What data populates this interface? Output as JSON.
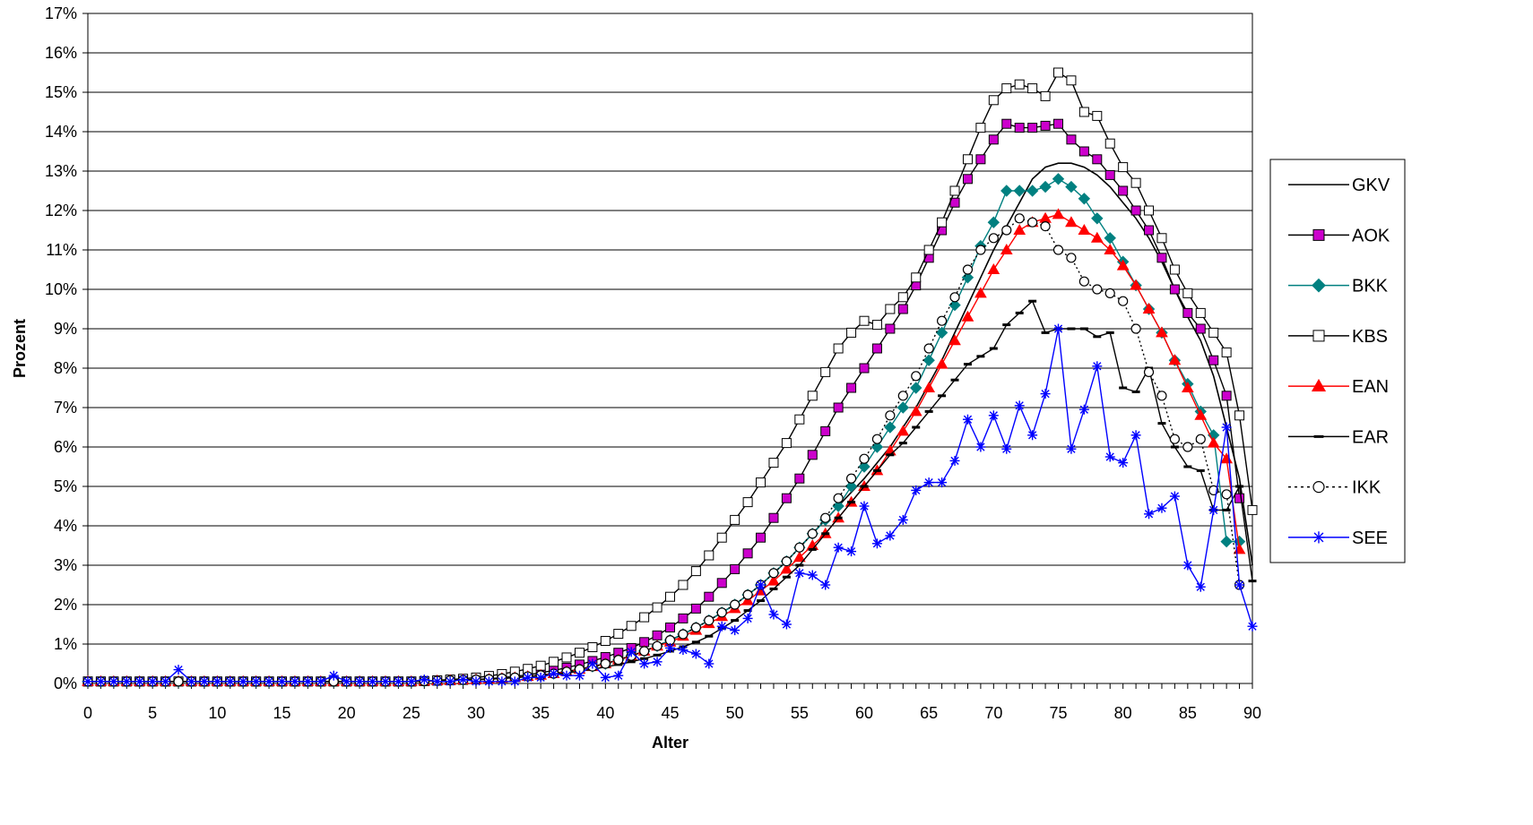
{
  "chart_data": {
    "type": "line",
    "xlabel": "Alter",
    "ylabel": "Prozent",
    "xlim": [
      0,
      90
    ],
    "ylim": [
      0,
      17
    ],
    "x_ticks": [
      0,
      5,
      10,
      15,
      20,
      25,
      30,
      35,
      40,
      45,
      50,
      55,
      60,
      65,
      70,
      75,
      80,
      85,
      90
    ],
    "y_ticks": [
      "0%",
      "1%",
      "2%",
      "3%",
      "4%",
      "5%",
      "6%",
      "7%",
      "8%",
      "9%",
      "10%",
      "11%",
      "12%",
      "13%",
      "14%",
      "15%",
      "16%",
      "17%"
    ],
    "grid": "horizontal",
    "legend_position": "right",
    "series": [
      {
        "name": "GKV",
        "color": "#000000",
        "marker": "none",
        "dash": "solid",
        "values": [
          0.05,
          0.05,
          0.05,
          0.05,
          0.05,
          0.05,
          0.05,
          0.05,
          0.05,
          0.05,
          0.05,
          0.05,
          0.05,
          0.05,
          0.05,
          0.05,
          0.05,
          0.05,
          0.05,
          0.05,
          0.05,
          0.05,
          0.05,
          0.05,
          0.05,
          0.05,
          0.06,
          0.07,
          0.08,
          0.09,
          0.1,
          0.11,
          0.13,
          0.15,
          0.18,
          0.21,
          0.25,
          0.3,
          0.36,
          0.43,
          0.5,
          0.6,
          0.7,
          0.82,
          0.95,
          1.1,
          1.25,
          1.42,
          1.6,
          1.8,
          2.0,
          2.25,
          2.5,
          2.8,
          3.1,
          3.45,
          3.8,
          4.15,
          4.5,
          4.85,
          5.2,
          5.6,
          6.0,
          6.5,
          7.0,
          7.6,
          8.2,
          8.9,
          9.6,
          10.3,
          11.0,
          11.6,
          12.2,
          12.8,
          13.1,
          13.2,
          13.2,
          13.1,
          12.9,
          12.6,
          12.2,
          11.8,
          11.3,
          10.7,
          10.0,
          9.3,
          8.7,
          7.8,
          6.5,
          5.2,
          3.0
        ]
      },
      {
        "name": "AOK",
        "color": "#000000",
        "fill": "#cc00cc",
        "marker": "square",
        "dash": "solid",
        "values": [
          0.05,
          0.05,
          0.05,
          0.05,
          0.05,
          0.05,
          0.05,
          0.05,
          0.05,
          0.05,
          0.05,
          0.05,
          0.05,
          0.05,
          0.05,
          0.05,
          0.05,
          0.05,
          0.05,
          0.05,
          0.05,
          0.05,
          0.05,
          0.05,
          0.05,
          0.05,
          0.06,
          0.07,
          0.08,
          0.09,
          0.1,
          0.12,
          0.15,
          0.18,
          0.22,
          0.27,
          0.33,
          0.4,
          0.48,
          0.57,
          0.67,
          0.78,
          0.9,
          1.05,
          1.22,
          1.42,
          1.65,
          1.9,
          2.2,
          2.55,
          2.9,
          3.3,
          3.7,
          4.2,
          4.7,
          5.2,
          5.8,
          6.4,
          7.0,
          7.5,
          8.0,
          8.5,
          9.0,
          9.5,
          10.1,
          10.8,
          11.5,
          12.2,
          12.8,
          13.3,
          13.8,
          14.2,
          14.1,
          14.1,
          14.15,
          14.2,
          13.8,
          13.5,
          13.3,
          12.9,
          12.5,
          12.0,
          11.5,
          10.8,
          10.0,
          9.4,
          9.0,
          8.2,
          7.3,
          4.7
        ]
      },
      {
        "name": "BKK",
        "color": "#008080",
        "fill": "#008080",
        "marker": "diamond",
        "dash": "solid",
        "values": [
          0.05,
          0.05,
          0.05,
          0.05,
          0.05,
          0.05,
          0.05,
          0.05,
          0.05,
          0.05,
          0.05,
          0.05,
          0.05,
          0.05,
          0.05,
          0.05,
          0.05,
          0.05,
          0.05,
          0.05,
          0.05,
          0.05,
          0.05,
          0.05,
          0.05,
          0.05,
          0.06,
          0.07,
          0.08,
          0.09,
          0.1,
          0.11,
          0.13,
          0.15,
          0.18,
          0.21,
          0.25,
          0.3,
          0.36,
          0.43,
          0.5,
          0.6,
          0.7,
          0.82,
          0.95,
          1.1,
          1.25,
          1.42,
          1.6,
          1.8,
          2.0,
          2.25,
          2.5,
          2.8,
          3.1,
          3.45,
          3.8,
          4.15,
          4.5,
          5.0,
          5.5,
          6.0,
          6.5,
          7.0,
          7.5,
          8.2,
          8.9,
          9.6,
          10.3,
          11.1,
          11.7,
          12.5,
          12.5,
          12.5,
          12.6,
          12.8,
          12.6,
          12.3,
          11.8,
          11.3,
          10.7,
          10.1,
          9.5,
          8.9,
          8.2,
          7.6,
          6.9,
          6.3,
          3.6,
          3.6
        ]
      },
      {
        "name": "KBS",
        "color": "#000000",
        "fill": "#ffffff",
        "marker": "square",
        "dash": "solid",
        "values": [
          0.05,
          0.05,
          0.05,
          0.05,
          0.05,
          0.05,
          0.05,
          0.05,
          0.05,
          0.05,
          0.05,
          0.05,
          0.05,
          0.05,
          0.05,
          0.05,
          0.05,
          0.05,
          0.05,
          0.05,
          0.05,
          0.05,
          0.05,
          0.05,
          0.05,
          0.05,
          0.06,
          0.08,
          0.1,
          0.12,
          0.15,
          0.19,
          0.24,
          0.3,
          0.37,
          0.45,
          0.55,
          0.66,
          0.78,
          0.92,
          1.08,
          1.26,
          1.46,
          1.68,
          1.93,
          2.2,
          2.5,
          2.85,
          3.25,
          3.7,
          4.15,
          4.6,
          5.1,
          5.6,
          6.1,
          6.7,
          7.3,
          7.9,
          8.5,
          8.9,
          9.2,
          9.1,
          9.5,
          9.8,
          10.3,
          11.0,
          11.7,
          12.5,
          13.3,
          14.1,
          14.8,
          15.1,
          15.2,
          15.1,
          14.9,
          15.5,
          15.3,
          14.5,
          14.4,
          13.7,
          13.1,
          12.7,
          12.0,
          11.3,
          10.5,
          9.9,
          9.4,
          8.9,
          8.4,
          6.8,
          4.4
        ]
      },
      {
        "name": "EAN",
        "color": "#ff0000",
        "fill": "#ff0000",
        "marker": "triangle",
        "dash": "solid",
        "values": [
          0.05,
          0.05,
          0.05,
          0.05,
          0.05,
          0.05,
          0.05,
          0.05,
          0.05,
          0.05,
          0.05,
          0.05,
          0.05,
          0.05,
          0.05,
          0.05,
          0.05,
          0.05,
          0.05,
          0.05,
          0.05,
          0.05,
          0.05,
          0.05,
          0.05,
          0.05,
          0.06,
          0.07,
          0.08,
          0.09,
          0.1,
          0.11,
          0.13,
          0.15,
          0.18,
          0.21,
          0.25,
          0.3,
          0.36,
          0.43,
          0.5,
          0.6,
          0.7,
          0.82,
          0.95,
          1.05,
          1.2,
          1.35,
          1.52,
          1.7,
          1.9,
          2.1,
          2.35,
          2.6,
          2.9,
          3.2,
          3.5,
          3.8,
          4.2,
          4.6,
          5.0,
          5.4,
          5.9,
          6.4,
          6.9,
          7.5,
          8.1,
          8.7,
          9.3,
          9.9,
          10.5,
          11.0,
          11.5,
          11.7,
          11.8,
          11.9,
          11.7,
          11.5,
          11.3,
          11.0,
          10.6,
          10.1,
          9.5,
          8.9,
          8.2,
          7.5,
          6.8,
          6.1,
          5.7,
          3.4
        ]
      },
      {
        "name": "EAR",
        "color": "#000000",
        "fill": "#000000",
        "marker": "dash",
        "dash": "solid",
        "values": [
          0.05,
          0.05,
          0.05,
          0.05,
          0.05,
          0.05,
          0.05,
          0.05,
          0.05,
          0.05,
          0.05,
          0.05,
          0.05,
          0.05,
          0.05,
          0.05,
          0.05,
          0.05,
          0.05,
          0.05,
          0.05,
          0.05,
          0.05,
          0.05,
          0.05,
          0.05,
          0.06,
          0.07,
          0.08,
          0.09,
          0.1,
          0.11,
          0.13,
          0.15,
          0.17,
          0.2,
          0.23,
          0.27,
          0.31,
          0.36,
          0.42,
          0.48,
          0.55,
          0.63,
          0.72,
          0.82,
          0.93,
          1.05,
          1.2,
          1.4,
          1.6,
          1.85,
          2.1,
          2.4,
          2.7,
          3.0,
          3.4,
          3.8,
          4.2,
          4.6,
          5.0,
          5.4,
          5.8,
          6.1,
          6.5,
          6.9,
          7.3,
          7.7,
          8.1,
          8.3,
          8.5,
          9.1,
          9.4,
          9.7,
          8.9,
          9.0,
          9.0,
          9.0,
          8.8,
          8.9,
          7.5,
          7.4,
          8.0,
          6.6,
          6.0,
          5.5,
          5.4,
          4.4,
          4.4,
          5.0,
          2.6
        ]
      },
      {
        "name": "IKK",
        "color": "#000000",
        "fill": "#ffffff",
        "marker": "circle",
        "dash": "dotted",
        "values": [
          0.05,
          0.05,
          0.05,
          0.05,
          0.05,
          0.05,
          0.05,
          0.05,
          0.05,
          0.05,
          0.05,
          0.05,
          0.05,
          0.05,
          0.05,
          0.05,
          0.05,
          0.05,
          0.05,
          0.05,
          0.05,
          0.05,
          0.05,
          0.05,
          0.05,
          0.05,
          0.06,
          0.07,
          0.08,
          0.09,
          0.1,
          0.11,
          0.13,
          0.15,
          0.18,
          0.21,
          0.25,
          0.3,
          0.36,
          0.43,
          0.5,
          0.6,
          0.7,
          0.82,
          0.95,
          1.1,
          1.25,
          1.42,
          1.6,
          1.8,
          2.0,
          2.25,
          2.5,
          2.8,
          3.1,
          3.45,
          3.8,
          4.2,
          4.7,
          5.2,
          5.7,
          6.2,
          6.8,
          7.3,
          7.8,
          8.5,
          9.2,
          9.8,
          10.5,
          11.0,
          11.3,
          11.5,
          11.8,
          11.7,
          11.6,
          11.0,
          10.8,
          10.2,
          10.0,
          9.9,
          9.7,
          9.0,
          7.9,
          7.3,
          6.2,
          6.0,
          6.2,
          4.9,
          4.8,
          2.5
        ]
      },
      {
        "name": "SEE",
        "color": "#0000ff",
        "fill": "#0000ff",
        "marker": "star",
        "dash": "solid",
        "values": [
          0.05,
          0.05,
          0.05,
          0.05,
          0.05,
          0.05,
          0.05,
          0.35,
          0.05,
          0.05,
          0.05,
          0.05,
          0.05,
          0.05,
          0.05,
          0.05,
          0.05,
          0.05,
          0.05,
          0.2,
          0.05,
          0.05,
          0.05,
          0.05,
          0.05,
          0.05,
          0.1,
          0.05,
          0.05,
          0.1,
          0.05,
          0.05,
          0.05,
          0.05,
          0.15,
          0.15,
          0.25,
          0.2,
          0.2,
          0.5,
          0.15,
          0.2,
          0.8,
          0.5,
          0.55,
          0.9,
          0.85,
          0.75,
          0.5,
          1.45,
          1.35,
          1.65,
          2.5,
          1.75,
          1.5,
          2.8,
          2.75,
          2.5,
          3.45,
          3.35,
          4.5,
          3.55,
          3.75,
          4.15,
          4.9,
          5.1,
          5.1,
          5.65,
          6.7,
          6.0,
          6.8,
          5.95,
          7.05,
          6.3,
          7.35,
          9.0,
          5.95,
          6.95,
          8.05,
          5.75,
          5.6,
          6.3,
          4.3,
          4.45,
          4.75,
          3.0,
          2.45,
          4.4,
          6.5,
          2.5,
          1.45
        ]
      }
    ]
  }
}
